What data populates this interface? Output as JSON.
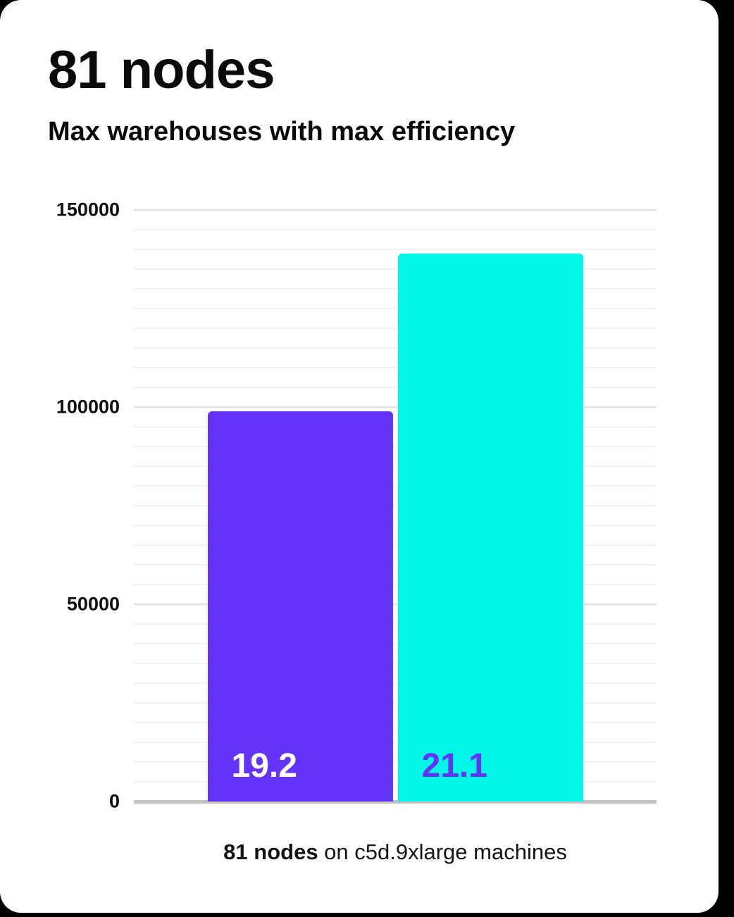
{
  "theme": {
    "page_background": "#000000",
    "card_background": "#ffffff",
    "text_color": "#0a0a0a",
    "axis_line_color": "#c3c3c3",
    "gridline_minor_color": "#f2f2f2",
    "gridline_major_color": "#e4e4e4",
    "accent_purple": "#6433fa",
    "accent_cyan": "#00f7e7"
  },
  "header": {
    "title": "81 nodes",
    "subtitle": "Max warehouses with max efficiency"
  },
  "caption": {
    "bold_text": "81 nodes",
    "regular_text": " on c5d.9xlarge machines"
  },
  "chart_data": {
    "type": "bar",
    "title": "81 nodes",
    "subtitle": "Max warehouses with max efficiency",
    "caption": "81 nodes on c5d.9xlarge machines",
    "categories": [
      "19.2",
      "21.1"
    ],
    "values": [
      99000,
      139000
    ],
    "bar_labels": [
      "19.2",
      "21.1"
    ],
    "bar_colors": [
      "#6433fa",
      "#00f7e7"
    ],
    "bar_label_colors": [
      "#ffffff",
      "#6433fa"
    ],
    "xlabel": "",
    "ylabel": "",
    "ylim": [
      0,
      150000
    ],
    "ytick_labels": [
      "0",
      "50000",
      "100000",
      "150000"
    ],
    "ytick_values": [
      0,
      50000,
      100000,
      150000
    ],
    "gridline_step": 5000,
    "major_step": 50000,
    "grid": "on",
    "legend": "none"
  }
}
